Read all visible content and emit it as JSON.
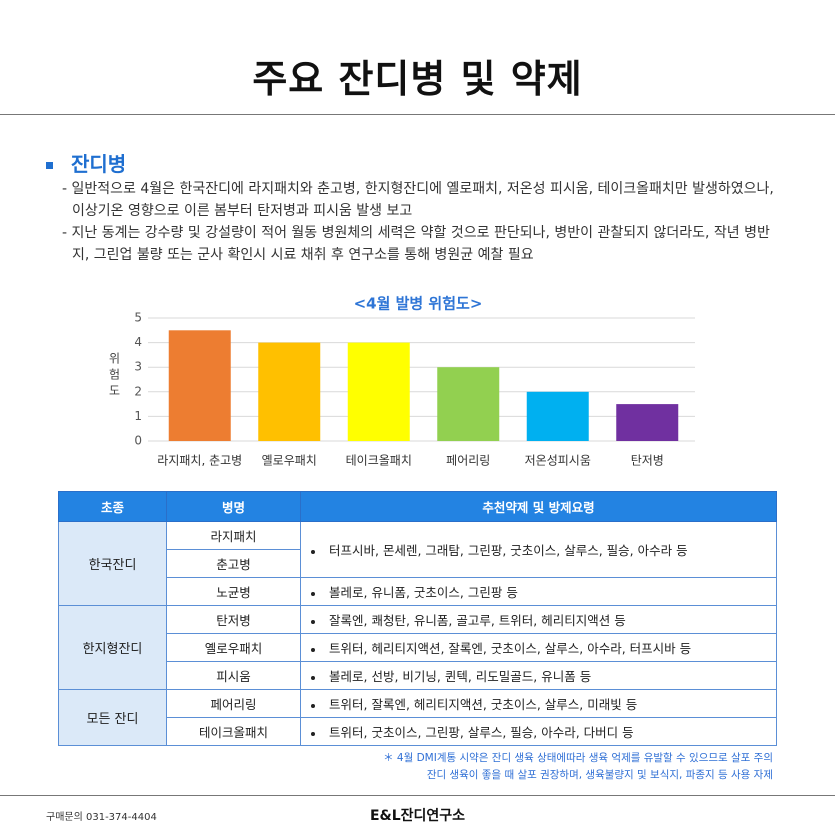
{
  "title": "주요 잔디병 및 약제",
  "section": {
    "heading": "잔디병",
    "bullets": [
      "- 일반적으로 4월은 한국잔디에 라지패치와 춘고병, 한지형잔디에 옐로패치, 저온성 피시움, 테이크올패치만 발생하였으나, 이상기온 영향으로 이른 봄부터 탄저병과 피시움 발생 보고",
      "- 지난 동계는 강수량 및 강설량이 적어 월동 병원체의 세력은 약할 것으로 판단되나, 병반이 관찰되지 않더라도, 작년 병반지, 그린업 불량 또는 군사 확인시 시료 채취 후 연구소를 통해 병원균 예찰 필요"
    ]
  },
  "chart_data": {
    "type": "bar",
    "title": "<4월 발병 위험도>",
    "y_label": "위험도",
    "categories": [
      "라지패치, 춘고병",
      "옐로우패치",
      "테이크올패치",
      "페어리링",
      "저온성피시움",
      "탄저병"
    ],
    "values": [
      4.5,
      4,
      4,
      3,
      2,
      1.5
    ],
    "colors": [
      "#ed7d31",
      "#ffc000",
      "#ffff00",
      "#92d050",
      "#00b0f0",
      "#7030a0"
    ],
    "ylim": [
      0,
      5
    ],
    "yticks": [
      0,
      1,
      2,
      3,
      4,
      5
    ],
    "grid": true
  },
  "table": {
    "headers": [
      "초종",
      "병명",
      "추천약제 및 방제요령"
    ],
    "groups": [
      {
        "turf": "한국잔디",
        "items": [
          {
            "diseases": [
              "라지패치",
              "춘고병"
            ],
            "advice": "터프시바, 몬세렌, 그래탐, 그린팡, 굿초이스, 살루스, 필승, 아수라 등"
          },
          {
            "diseases": [
              "노균병"
            ],
            "advice": "볼레로, 유니폼, 굿초이스, 그린팡 등"
          }
        ]
      },
      {
        "turf": "한지형잔디",
        "items": [
          {
            "diseases": [
              "탄저병"
            ],
            "advice": "잘록엔, 쾌청탄, 유니폼, 골고루, 트위터, 헤리티지액션 등"
          },
          {
            "diseases": [
              "옐로우패치"
            ],
            "advice": "트위터, 헤리티지액션, 잘록엔, 굿초이스, 살루스, 아수라, 터프시바 등"
          },
          {
            "diseases": [
              "피시움"
            ],
            "advice": "볼레로, 선방, 비기닝, 퀸텍, 리도밀골드, 유니폼 등"
          }
        ]
      },
      {
        "turf": "모든 잔디",
        "items": [
          {
            "diseases": [
              "페어리링"
            ],
            "advice": "트위터, 잘록엔, 헤리티지액션, 굿초이스, 살루스, 미래빛 등"
          },
          {
            "diseases": [
              "테이크올패치"
            ],
            "advice": "트위터, 굿초이스, 그린팡, 살루스, 필승, 아수라, 다버디 등"
          }
        ]
      }
    ]
  },
  "footnote": [
    "＊ 4월 DMI계통 시약은 잔디 생육 상태에따라 생육 억제를 유발할 수 있으므로 살포 주의",
    "잔디 생육이 좋을 때 살포 권장하며, 생육불량지 및 보식지, 파종지 등 사용 자제"
  ],
  "footer": {
    "contact": "구매문의 031-374-4404",
    "company": "E&L잔디연구소"
  }
}
